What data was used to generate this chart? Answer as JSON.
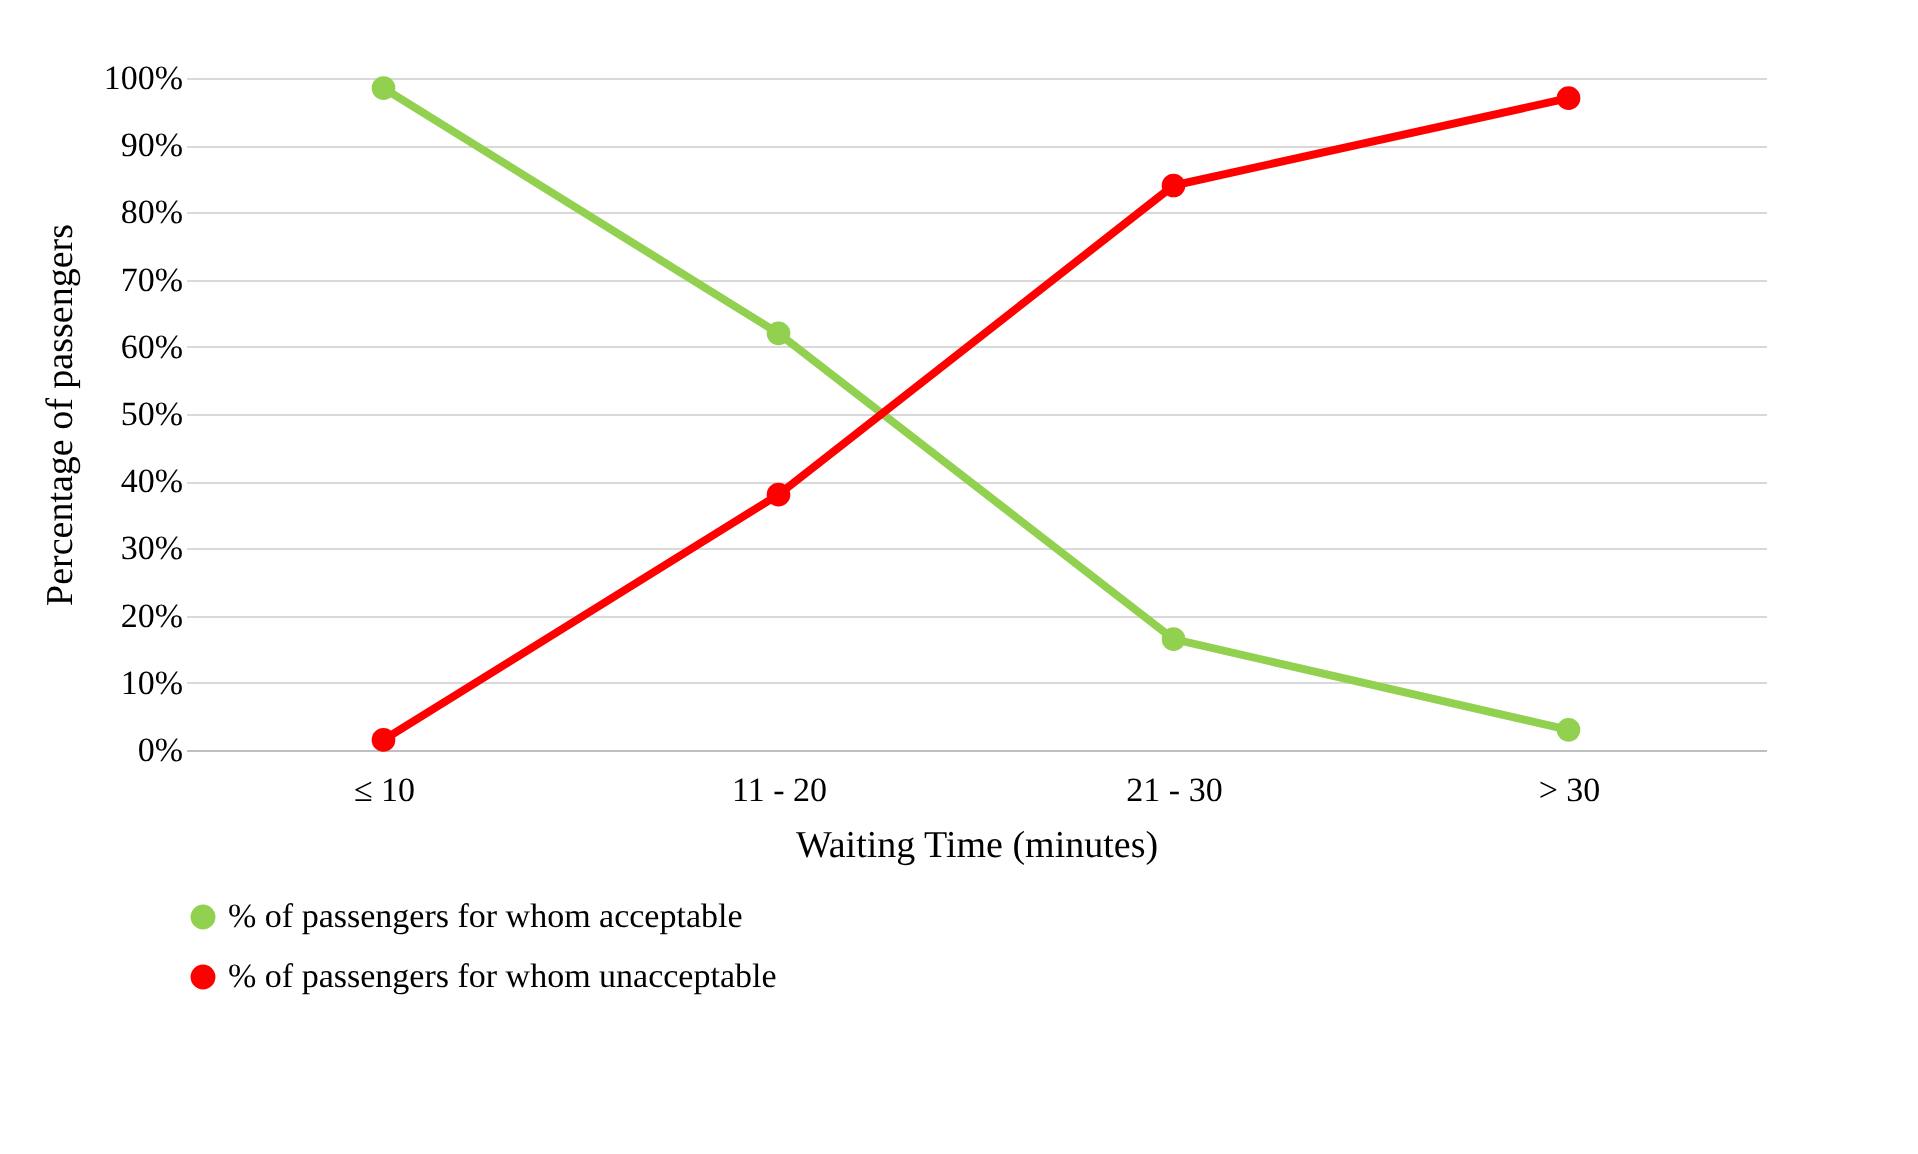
{
  "chart_data": {
    "type": "line",
    "xlabel": "Waiting Time (minutes)",
    "ylabel": "Percentage of passengers",
    "categories": [
      "≤ 10",
      "11 - 20",
      "21 - 30",
      "> 30"
    ],
    "series": [
      {
        "name": "% of passengers for whom acceptable",
        "color": "#92d050",
        "values": [
          98.5,
          62,
          16.5,
          3
        ]
      },
      {
        "name": "% of passengers for whom unacceptable",
        "color": "#ff0000",
        "values": [
          1.5,
          38,
          84,
          97
        ]
      }
    ],
    "ylim": [
      0,
      100
    ],
    "yticks": [
      {
        "value": 0,
        "label": "0%"
      },
      {
        "value": 10,
        "label": "10%"
      },
      {
        "value": 20,
        "label": "20%"
      },
      {
        "value": 30,
        "label": "30%"
      },
      {
        "value": 40,
        "label": "40%"
      },
      {
        "value": 50,
        "label": "50%"
      },
      {
        "value": 60,
        "label": "60%"
      },
      {
        "value": 70,
        "label": "70%"
      },
      {
        "value": 80,
        "label": "80%"
      },
      {
        "value": 90,
        "label": "90%"
      },
      {
        "value": 100,
        "label": "100%"
      }
    ],
    "grid": "y",
    "legend": "bottom",
    "marker": "circle",
    "line_style": "solid"
  }
}
